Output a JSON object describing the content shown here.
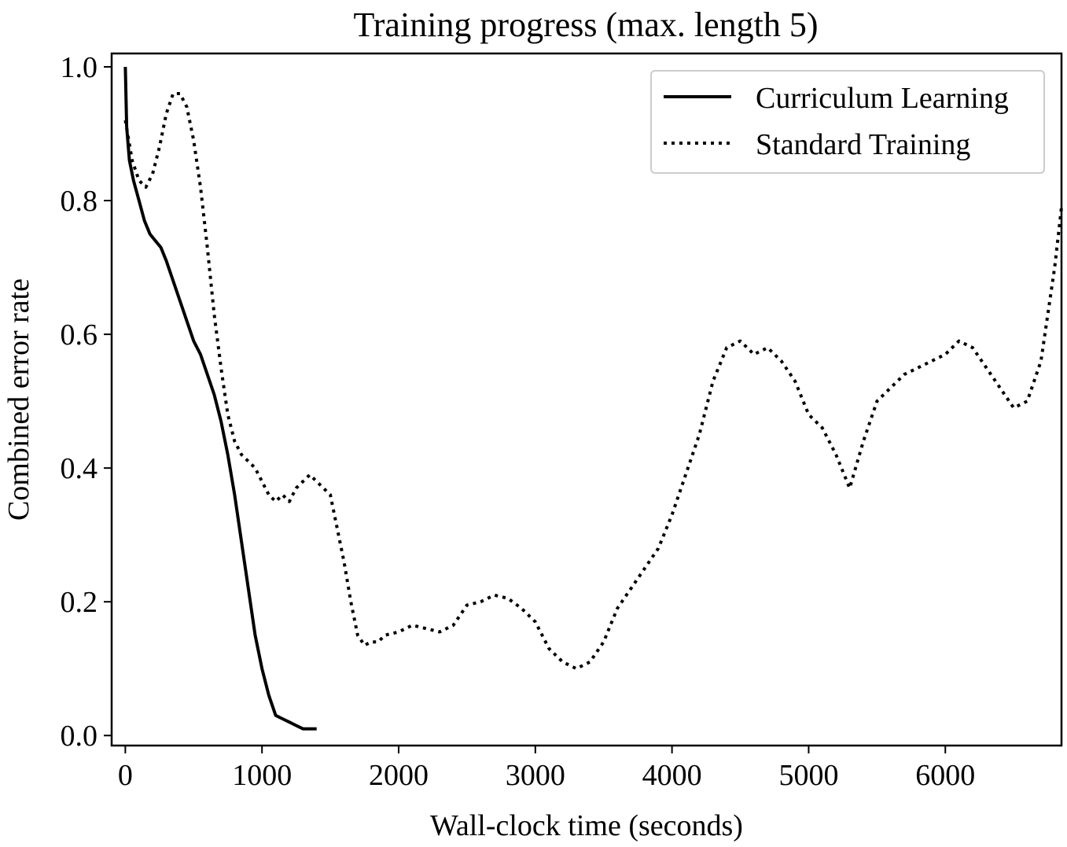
{
  "chart_data": {
    "type": "line",
    "title": "Training progress (max. length 5)",
    "xlabel": "Wall-clock time (seconds)",
    "ylabel": "Combined error rate",
    "xlim": [
      -100,
      6850
    ],
    "ylim": [
      -0.015,
      1.02
    ],
    "xticks": [
      0,
      1000,
      2000,
      3000,
      4000,
      5000,
      6000
    ],
    "yticks": [
      0.0,
      0.2,
      0.4,
      0.6,
      0.8,
      1.0
    ],
    "xtick_labels": [
      "0",
      "1000",
      "2000",
      "3000",
      "4000",
      "5000",
      "6000"
    ],
    "ytick_labels": [
      "0.0",
      "0.2",
      "0.4",
      "0.6",
      "0.8",
      "1.0"
    ],
    "grid": false,
    "legend_position": "top-right",
    "series": [
      {
        "name": "Curriculum Learning",
        "style": "solid",
        "color": "#000000",
        "x": [
          0,
          10,
          30,
          60,
          100,
          140,
          180,
          220,
          260,
          300,
          350,
          400,
          450,
          500,
          550,
          600,
          650,
          700,
          750,
          800,
          850,
          900,
          950,
          1000,
          1050,
          1100,
          1150,
          1200,
          1250,
          1300,
          1350,
          1400
        ],
        "y": [
          1.0,
          0.91,
          0.86,
          0.83,
          0.8,
          0.77,
          0.75,
          0.74,
          0.73,
          0.71,
          0.68,
          0.65,
          0.62,
          0.59,
          0.57,
          0.54,
          0.51,
          0.47,
          0.42,
          0.36,
          0.29,
          0.22,
          0.15,
          0.1,
          0.06,
          0.03,
          0.025,
          0.02,
          0.015,
          0.01,
          0.01,
          0.01
        ]
      },
      {
        "name": "Standard Training",
        "style": "dotted",
        "color": "#000000",
        "x": [
          0,
          50,
          100,
          150,
          200,
          250,
          300,
          350,
          400,
          450,
          500,
          550,
          600,
          650,
          700,
          750,
          800,
          850,
          900,
          950,
          1000,
          1050,
          1100,
          1150,
          1200,
          1250,
          1300,
          1350,
          1400,
          1450,
          1500,
          1550,
          1600,
          1650,
          1700,
          1750,
          1800,
          1850,
          1900,
          2000,
          2100,
          2200,
          2300,
          2400,
          2500,
          2600,
          2700,
          2800,
          2900,
          3000,
          3100,
          3200,
          3300,
          3400,
          3500,
          3600,
          3700,
          3800,
          3900,
          4000,
          4100,
          4200,
          4300,
          4400,
          4500,
          4600,
          4700,
          4800,
          4900,
          5000,
          5100,
          5200,
          5300,
          5400,
          5500,
          5600,
          5700,
          5800,
          5900,
          6000,
          6100,
          6200,
          6300,
          6400,
          6500,
          6600,
          6700,
          6800,
          6850
        ],
        "y": [
          0.92,
          0.86,
          0.83,
          0.82,
          0.84,
          0.88,
          0.93,
          0.96,
          0.96,
          0.94,
          0.89,
          0.82,
          0.73,
          0.63,
          0.55,
          0.48,
          0.44,
          0.42,
          0.41,
          0.4,
          0.38,
          0.36,
          0.35,
          0.36,
          0.35,
          0.37,
          0.38,
          0.39,
          0.38,
          0.37,
          0.36,
          0.31,
          0.26,
          0.2,
          0.15,
          0.135,
          0.14,
          0.14,
          0.15,
          0.155,
          0.165,
          0.16,
          0.155,
          0.165,
          0.195,
          0.2,
          0.21,
          0.205,
          0.19,
          0.17,
          0.13,
          0.11,
          0.1,
          0.11,
          0.14,
          0.19,
          0.22,
          0.25,
          0.28,
          0.33,
          0.39,
          0.45,
          0.53,
          0.58,
          0.59,
          0.57,
          0.58,
          0.56,
          0.53,
          0.48,
          0.46,
          0.42,
          0.37,
          0.44,
          0.5,
          0.52,
          0.54,
          0.55,
          0.56,
          0.57,
          0.59,
          0.58,
          0.55,
          0.52,
          0.49,
          0.5,
          0.56,
          0.7,
          0.79
        ]
      }
    ]
  }
}
